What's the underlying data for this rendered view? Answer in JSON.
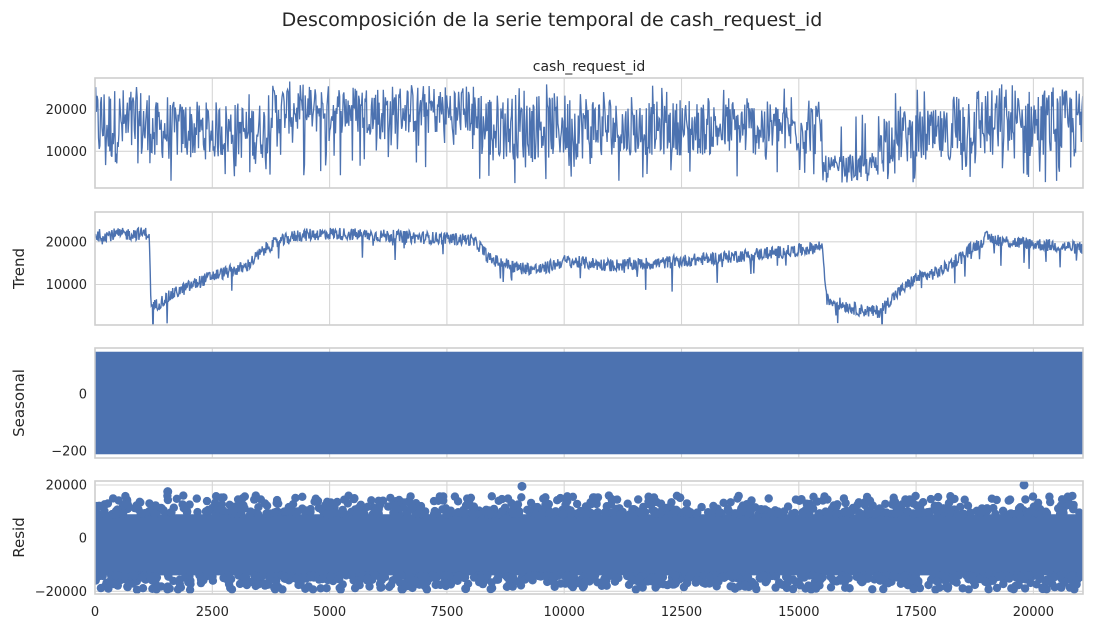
{
  "title": "Descomposición de la serie temporal de cash_request_id",
  "chart_data": [
    {
      "type": "line",
      "title": "cash_request_id",
      "ylabel": "",
      "xlim": [
        0,
        21057
      ],
      "ylim": [
        1200,
        27600
      ],
      "yticks": [
        10000,
        20000
      ],
      "ytick_labels": [
        "10000",
        "20000"
      ],
      "xticks": [
        0,
        2500,
        5000,
        7500,
        10000,
        12500,
        15000,
        17500,
        20000
      ],
      "grid": true,
      "series": [
        {
          "color": "#4c72b0",
          "segments": [
            {
              "x0": 0,
              "x1": 1200,
              "lo": 2500,
              "hi": 26800,
              "core_lo": 7000,
              "core_hi": 25500
            },
            {
              "x0": 1200,
              "x1": 3700,
              "lo": 2200,
              "hi": 24500,
              "core_lo": 8000,
              "core_hi": 22000
            },
            {
              "x0": 3700,
              "x1": 8200,
              "lo": 4000,
              "hi": 26800,
              "core_lo": 14000,
              "core_hi": 26000
            },
            {
              "x0": 8200,
              "x1": 11000,
              "lo": 2200,
              "hi": 26500,
              "core_lo": 8000,
              "core_hi": 24000
            },
            {
              "x0": 11000,
              "x1": 15500,
              "lo": 2800,
              "hi": 26000,
              "core_lo": 9000,
              "core_hi": 22000
            },
            {
              "x0": 15500,
              "x1": 16700,
              "lo": 1400,
              "hi": 20000,
              "core_lo": 2500,
              "core_hi": 9000
            },
            {
              "x0": 16700,
              "x1": 18200,
              "lo": 2500,
              "hi": 25000,
              "core_lo": 7000,
              "core_hi": 20000
            },
            {
              "x0": 18200,
              "x1": 21057,
              "lo": 2500,
              "hi": 26800,
              "core_lo": 8000,
              "core_hi": 25000
            }
          ]
        }
      ]
    },
    {
      "type": "line",
      "title": "",
      "ylabel": "Trend",
      "xlim": [
        0,
        21057
      ],
      "ylim": [
        500,
        27000
      ],
      "yticks": [
        10000,
        20000
      ],
      "ytick_labels": [
        "10000",
        "20000"
      ],
      "xticks": [
        0,
        2500,
        5000,
        7500,
        10000,
        12500,
        15000,
        17500,
        20000
      ],
      "grid": true,
      "series": [
        {
          "color": "#4c72b0",
          "points": [
            [
              0,
              21500
            ],
            [
              1150,
              22000
            ],
            [
              1200,
              4500
            ],
            [
              1700,
              8000
            ],
            [
              2500,
              12000
            ],
            [
              3200,
              14000
            ],
            [
              3700,
              19000
            ],
            [
              4300,
              21500
            ],
            [
              5000,
              22000
            ],
            [
              6000,
              21500
            ],
            [
              7000,
              21000
            ],
            [
              8000,
              20500
            ],
            [
              8200,
              19000
            ],
            [
              8400,
              16000
            ],
            [
              9000,
              14000
            ],
            [
              9500,
              13500
            ],
            [
              10000,
              15500
            ],
            [
              11000,
              14500
            ],
            [
              12000,
              15000
            ],
            [
              13000,
              16000
            ],
            [
              14000,
              17000
            ],
            [
              15000,
              18000
            ],
            [
              15500,
              19000
            ],
            [
              15600,
              6500
            ],
            [
              16000,
              5000
            ],
            [
              16300,
              4000
            ],
            [
              16700,
              3500
            ],
            [
              17000,
              7000
            ],
            [
              17500,
              11500
            ],
            [
              18000,
              13000
            ],
            [
              18500,
              17000
            ],
            [
              19000,
              21000
            ],
            [
              19500,
              20000
            ],
            [
              20000,
              19500
            ],
            [
              21057,
              18500
            ]
          ],
          "noise": 3000
        }
      ]
    },
    {
      "type": "area",
      "title": "",
      "ylabel": "Seasonal",
      "xlim": [
        0,
        21057
      ],
      "ylim": [
        -224,
        160
      ],
      "yticks": [
        -200,
        0
      ],
      "ytick_labels": [
        "−200",
        "0"
      ],
      "xticks": [
        0,
        2500,
        5000,
        7500,
        10000,
        12500,
        15000,
        17500,
        20000
      ],
      "grid": true,
      "series": [
        {
          "color": "#4c72b0",
          "band_low": -211,
          "band_high": 147
        }
      ]
    },
    {
      "type": "scatter",
      "title": "",
      "ylabel": "Resid",
      "xlim": [
        0,
        21057
      ],
      "ylim": [
        -21000,
        21500
      ],
      "yticks": [
        -20000,
        0,
        20000
      ],
      "ytick_labels": [
        "−20000",
        "0",
        "20000"
      ],
      "xticks": [
        0,
        2500,
        5000,
        7500,
        10000,
        12500,
        15000,
        17500,
        20000
      ],
      "xtick_labels": [
        "0",
        "2500",
        "5000",
        "7500",
        "10000",
        "12500",
        "15000",
        "17500",
        "20000"
      ],
      "grid": true,
      "series": [
        {
          "color": "#4c72b0",
          "band_low": -14000,
          "band_high": 9000,
          "notable_points": [
            [
              1550,
              17500
            ],
            [
              9100,
              19500
            ],
            [
              19800,
              20000
            ],
            [
              20200,
              -19000
            ],
            [
              7900,
              -19000
            ]
          ]
        }
      ]
    }
  ]
}
